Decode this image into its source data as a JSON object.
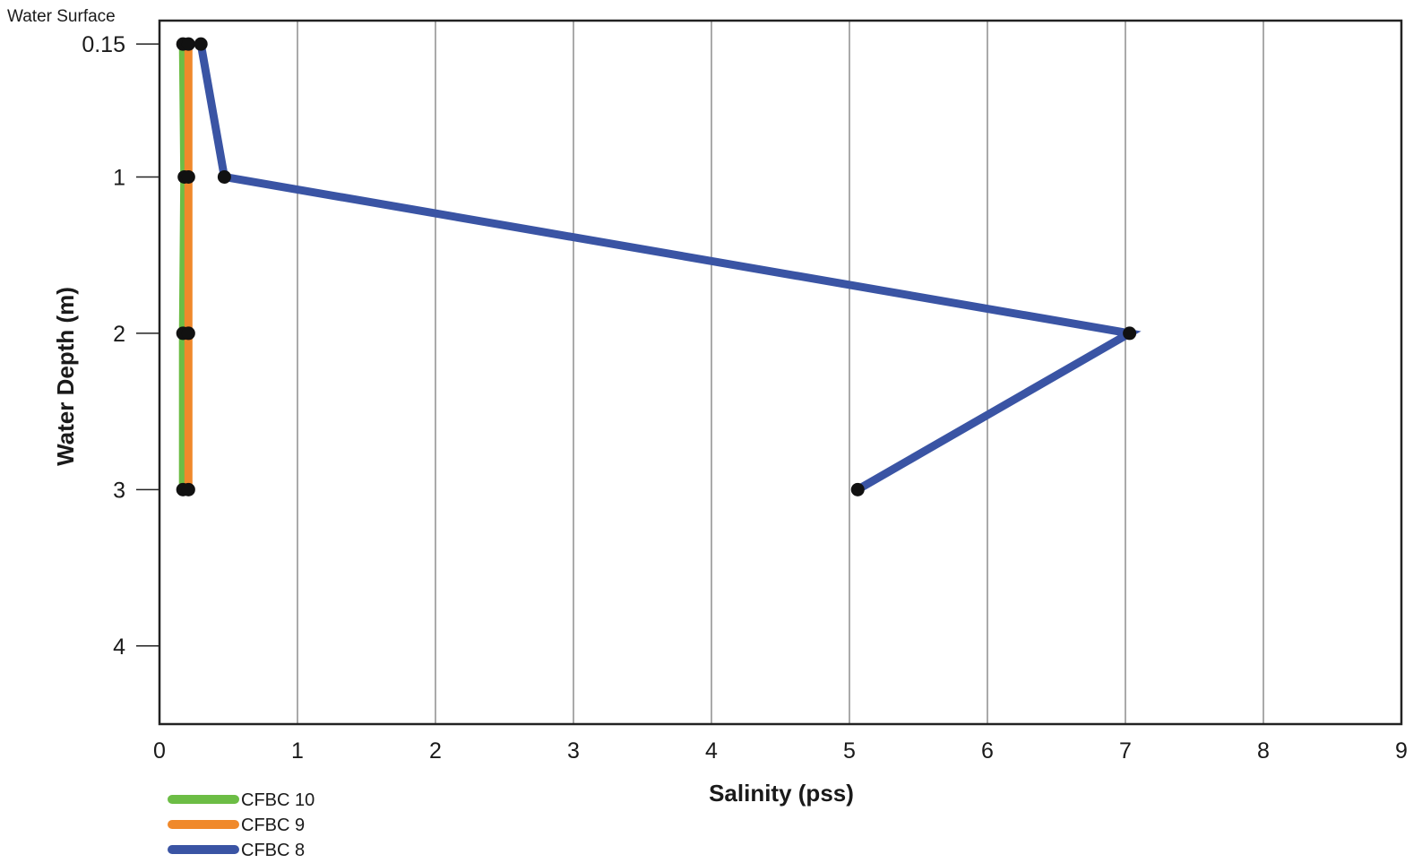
{
  "chart_data": {
    "type": "line",
    "title": "",
    "xlabel": "Salinity (pss)",
    "ylabel": "Water Depth (m)",
    "top_label": "Water Surface",
    "xlim": [
      0,
      9
    ],
    "ylim": [
      0,
      4.5
    ],
    "y_inverted": true,
    "x_ticks": [
      "0",
      "1",
      "2",
      "3",
      "4",
      "5",
      "6",
      "7",
      "8",
      "9"
    ],
    "y_ticks": [
      "0.15",
      "1",
      "2",
      "3",
      "4"
    ],
    "grid": "vertical",
    "legend_position": "bottom-left",
    "series": [
      {
        "name": "CFBC 10",
        "color": "#6cbd45",
        "points": [
          {
            "x": 0.17,
            "y": 0.15
          },
          {
            "x": 0.18,
            "y": 1
          },
          {
            "x": 0.17,
            "y": 2
          },
          {
            "x": 0.17,
            "y": 3
          }
        ]
      },
      {
        "name": "CFBC 9",
        "color": "#f0892b",
        "points": [
          {
            "x": 0.21,
            "y": 0.15
          },
          {
            "x": 0.21,
            "y": 1
          },
          {
            "x": 0.21,
            "y": 2
          },
          {
            "x": 0.21,
            "y": 3
          }
        ]
      },
      {
        "name": "CFBC 8",
        "color": "#3a54a4",
        "points": [
          {
            "x": 0.3,
            "y": 0.15
          },
          {
            "x": 0.47,
            "y": 1
          },
          {
            "x": 7.03,
            "y": 2
          },
          {
            "x": 5.06,
            "y": 3
          }
        ]
      }
    ]
  }
}
